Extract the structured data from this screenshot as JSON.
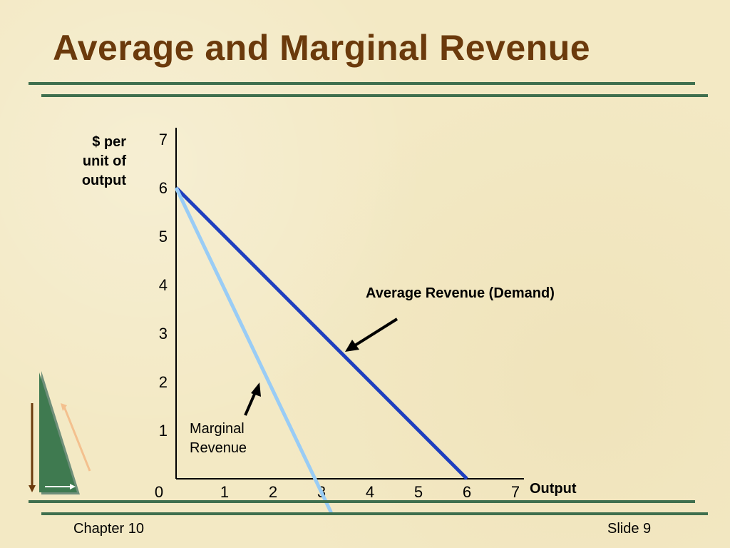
{
  "slide": {
    "title": "Average and Marginal Revenue",
    "footer_left": "Chapter 10",
    "footer_right": "Slide 9"
  },
  "chart_data": {
    "type": "line",
    "ylabel_lines": [
      "$ per",
      "unit of",
      "output"
    ],
    "xlabel": "Output",
    "xlim": [
      0,
      7
    ],
    "ylim": [
      0,
      7
    ],
    "x_ticks": [
      "0",
      "1",
      "2",
      "3",
      "4",
      "5",
      "6",
      "7"
    ],
    "y_ticks": [
      "1",
      "2",
      "3",
      "4",
      "5",
      "6",
      "7"
    ],
    "series": [
      {
        "name": "Average Revenue (Demand)",
        "color": "#1f3fbf",
        "x": [
          0,
          6
        ],
        "y": [
          6,
          0
        ]
      },
      {
        "name": "Marginal Revenue",
        "color": "#99ccf5",
        "x": [
          0,
          3.2
        ],
        "y": [
          6,
          -0.7
        ]
      }
    ],
    "annotations": [
      {
        "text_lines": [
          "Average Revenue (Demand)"
        ],
        "target": [
          3.5,
          2.6
        ]
      },
      {
        "text_lines": [
          "Marginal",
          "Revenue"
        ],
        "target": [
          1.8,
          2.2
        ]
      }
    ]
  }
}
